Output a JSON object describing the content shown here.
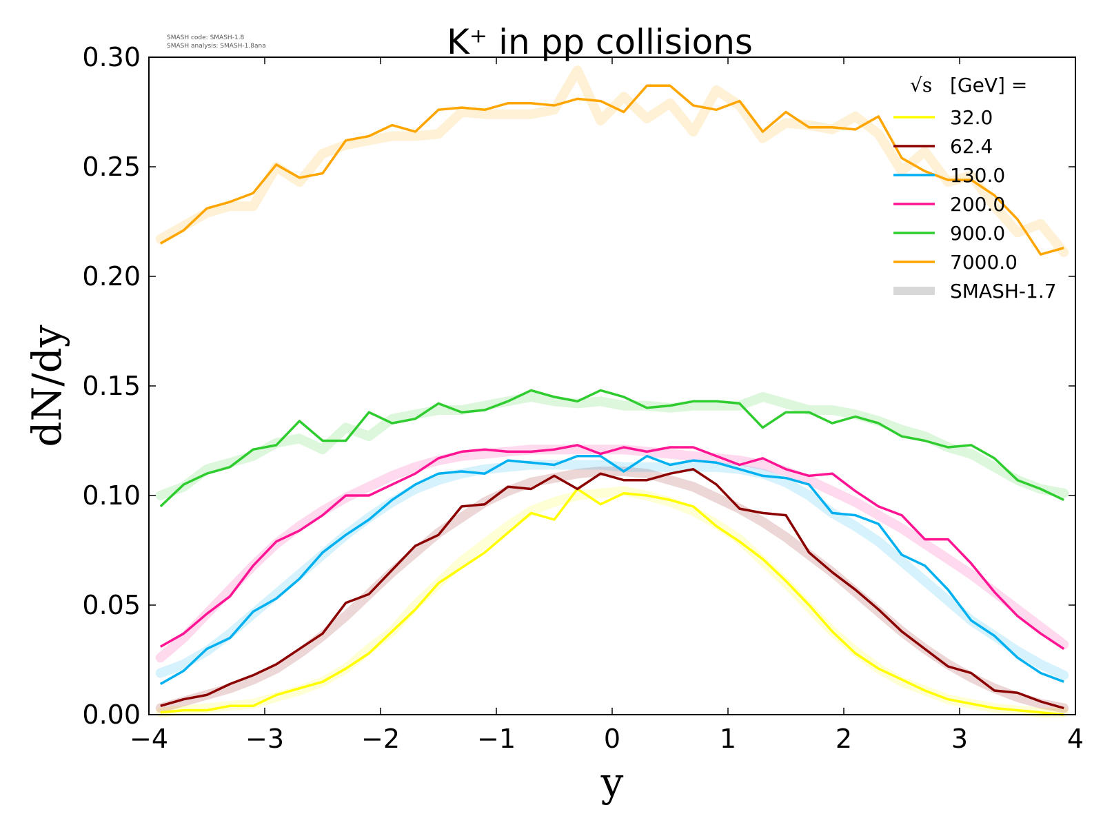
{
  "watermark": {
    "line1": "SMASH code:      SMASH-1.8",
    "line2": "SMASH analysis: SMASH-1.8ana"
  },
  "chart_data": {
    "type": "line",
    "title": "K⁺ in pp collisions",
    "xlabel": "y",
    "ylabel": "dN/dy",
    "xlim": [
      -4,
      4
    ],
    "ylim": [
      0,
      0.3
    ],
    "xticks": [
      -4,
      -3,
      -2,
      -1,
      0,
      1,
      2,
      3,
      4
    ],
    "xtick_labels": [
      "−4",
      "−3",
      "−2",
      "−1",
      "0",
      "1",
      "2",
      "3",
      "4"
    ],
    "yticks": [
      0,
      0.05,
      0.1,
      0.15,
      0.2,
      0.25,
      0.3
    ],
    "ytick_labels": [
      "0.00",
      "0.05",
      "0.10",
      "0.15",
      "0.20",
      "0.25",
      "0.30"
    ],
    "grid": false,
    "legend": {
      "placement": "top-right",
      "title_sqrt": "√s",
      "title_rest": "[GeV] =",
      "reference_label": "SMASH-1.7",
      "reference_color": "#d8d8d8"
    },
    "x": [
      -3.9,
      -3.7,
      -3.5,
      -3.3,
      -3.1,
      -2.9,
      -2.7,
      -2.5,
      -2.3,
      -2.1,
      -1.9,
      -1.7,
      -1.5,
      -1.3,
      -1.1,
      -0.9,
      -0.7,
      -0.5,
      -0.3,
      -0.1,
      0.1,
      0.3,
      0.5,
      0.7,
      0.9,
      1.1,
      1.3,
      1.5,
      1.7,
      1.9,
      2.1,
      2.3,
      2.5,
      2.7,
      2.9,
      3.1,
      3.3,
      3.5,
      3.7,
      3.9
    ],
    "series": [
      {
        "name": "32.0",
        "color": "#ffff00",
        "values": [
          0.001,
          0.002,
          0.002,
          0.004,
          0.004,
          0.009,
          0.012,
          0.015,
          0.021,
          0.028,
          0.038,
          0.048,
          0.06,
          0.067,
          0.074,
          0.083,
          0.092,
          0.089,
          0.103,
          0.096,
          0.101,
          0.1,
          0.098,
          0.095,
          0.086,
          0.079,
          0.071,
          0.061,
          0.05,
          0.038,
          0.028,
          0.021,
          0.016,
          0.011,
          0.007,
          0.005,
          0.003,
          0.002,
          0.001,
          0.0
        ],
        "reference": [
          0.001,
          0.002,
          0.003,
          0.004,
          0.005,
          0.008,
          0.011,
          0.015,
          0.021,
          0.03,
          0.038,
          0.05,
          0.06,
          0.07,
          0.078,
          0.086,
          0.093,
          0.097,
          0.1,
          0.101,
          0.102,
          0.1,
          0.097,
          0.093,
          0.087,
          0.08,
          0.07,
          0.06,
          0.049,
          0.038,
          0.029,
          0.021,
          0.015,
          0.011,
          0.007,
          0.005,
          0.003,
          0.002,
          0.001,
          0.001
        ]
      },
      {
        "name": "62.4",
        "color": "#8b0000",
        "values": [
          0.004,
          0.007,
          0.009,
          0.014,
          0.018,
          0.023,
          0.03,
          0.037,
          0.051,
          0.055,
          0.066,
          0.077,
          0.082,
          0.095,
          0.096,
          0.104,
          0.103,
          0.109,
          0.103,
          0.11,
          0.107,
          0.107,
          0.11,
          0.112,
          0.105,
          0.094,
          0.092,
          0.091,
          0.074,
          0.065,
          0.057,
          0.048,
          0.038,
          0.03,
          0.022,
          0.019,
          0.011,
          0.01,
          0.006,
          0.003
        ],
        "reference": [
          0.003,
          0.006,
          0.009,
          0.012,
          0.016,
          0.021,
          0.028,
          0.036,
          0.045,
          0.055,
          0.065,
          0.074,
          0.083,
          0.09,
          0.097,
          0.102,
          0.106,
          0.108,
          0.11,
          0.111,
          0.111,
          0.11,
          0.107,
          0.104,
          0.099,
          0.094,
          0.088,
          0.081,
          0.073,
          0.065,
          0.056,
          0.047,
          0.038,
          0.03,
          0.023,
          0.017,
          0.012,
          0.008,
          0.005,
          0.003
        ]
      },
      {
        "name": "130.0",
        "color": "#00b0f0",
        "values": [
          0.014,
          0.02,
          0.03,
          0.035,
          0.047,
          0.053,
          0.062,
          0.074,
          0.082,
          0.089,
          0.098,
          0.105,
          0.11,
          0.111,
          0.11,
          0.116,
          0.115,
          0.114,
          0.118,
          0.118,
          0.111,
          0.118,
          0.114,
          0.116,
          0.115,
          0.112,
          0.109,
          0.108,
          0.105,
          0.092,
          0.091,
          0.087,
          0.073,
          0.068,
          0.057,
          0.043,
          0.036,
          0.026,
          0.019,
          0.015
        ],
        "reference": [
          0.019,
          0.023,
          0.029,
          0.037,
          0.046,
          0.055,
          0.064,
          0.073,
          0.082,
          0.09,
          0.097,
          0.103,
          0.107,
          0.11,
          0.112,
          0.113,
          0.114,
          0.114,
          0.114,
          0.114,
          0.113,
          0.113,
          0.113,
          0.113,
          0.113,
          0.112,
          0.11,
          0.106,
          0.1,
          0.092,
          0.086,
          0.079,
          0.07,
          0.061,
          0.052,
          0.043,
          0.036,
          0.029,
          0.023,
          0.018
        ]
      },
      {
        "name": "200.0",
        "color": "#ff1493",
        "values": [
          0.031,
          0.037,
          0.046,
          0.054,
          0.068,
          0.079,
          0.084,
          0.091,
          0.1,
          0.1,
          0.105,
          0.11,
          0.117,
          0.12,
          0.121,
          0.12,
          0.12,
          0.121,
          0.123,
          0.119,
          0.122,
          0.12,
          0.122,
          0.122,
          0.118,
          0.114,
          0.117,
          0.112,
          0.109,
          0.11,
          0.102,
          0.095,
          0.091,
          0.08,
          0.08,
          0.069,
          0.056,
          0.045,
          0.037,
          0.03
        ],
        "reference": [
          0.026,
          0.035,
          0.046,
          0.057,
          0.068,
          0.078,
          0.086,
          0.093,
          0.099,
          0.104,
          0.109,
          0.113,
          0.116,
          0.118,
          0.119,
          0.12,
          0.121,
          0.121,
          0.121,
          0.121,
          0.121,
          0.12,
          0.119,
          0.118,
          0.117,
          0.116,
          0.114,
          0.111,
          0.107,
          0.102,
          0.097,
          0.091,
          0.085,
          0.078,
          0.071,
          0.064,
          0.056,
          0.048,
          0.04,
          0.032
        ]
      },
      {
        "name": "900.0",
        "color": "#2ecc2e",
        "values": [
          0.095,
          0.105,
          0.11,
          0.113,
          0.121,
          0.123,
          0.134,
          0.125,
          0.125,
          0.138,
          0.133,
          0.135,
          0.142,
          0.138,
          0.139,
          0.143,
          0.148,
          0.145,
          0.143,
          0.148,
          0.145,
          0.14,
          0.141,
          0.143,
          0.143,
          0.142,
          0.131,
          0.138,
          0.138,
          0.133,
          0.136,
          0.133,
          0.127,
          0.125,
          0.122,
          0.123,
          0.117,
          0.107,
          0.103,
          0.098
        ],
        "reference": [
          0.1,
          0.104,
          0.112,
          0.115,
          0.118,
          0.124,
          0.126,
          0.121,
          0.131,
          0.127,
          0.135,
          0.137,
          0.139,
          0.139,
          0.141,
          0.143,
          0.145,
          0.143,
          0.142,
          0.143,
          0.141,
          0.141,
          0.14,
          0.141,
          0.141,
          0.141,
          0.145,
          0.142,
          0.139,
          0.139,
          0.137,
          0.134,
          0.13,
          0.127,
          0.122,
          0.119,
          0.113,
          0.107,
          0.103,
          0.101
        ]
      },
      {
        "name": "7000.0",
        "color": "#ffa500",
        "values": [
          0.215,
          0.221,
          0.231,
          0.234,
          0.238,
          0.251,
          0.245,
          0.247,
          0.262,
          0.264,
          0.269,
          0.266,
          0.276,
          0.277,
          0.276,
          0.279,
          0.279,
          0.278,
          0.281,
          0.28,
          0.275,
          0.287,
          0.287,
          0.278,
          0.276,
          0.28,
          0.266,
          0.275,
          0.268,
          0.268,
          0.267,
          0.273,
          0.254,
          0.248,
          0.244,
          0.244,
          0.237,
          0.226,
          0.21,
          0.213
        ],
        "reference": [
          0.217,
          0.223,
          0.229,
          0.232,
          0.232,
          0.25,
          0.243,
          0.256,
          0.26,
          0.262,
          0.264,
          0.264,
          0.265,
          0.275,
          0.274,
          0.274,
          0.274,
          0.276,
          0.294,
          0.271,
          0.282,
          0.272,
          0.279,
          0.266,
          0.285,
          0.278,
          0.263,
          0.27,
          0.269,
          0.267,
          0.273,
          0.265,
          0.248,
          0.257,
          0.243,
          0.246,
          0.232,
          0.22,
          0.224,
          0.211
        ]
      }
    ]
  }
}
